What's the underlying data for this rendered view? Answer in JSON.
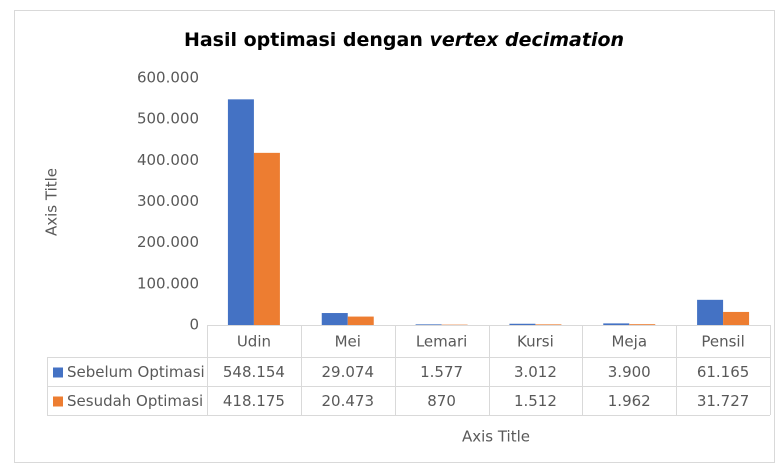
{
  "chart_data": {
    "type": "bar",
    "title": [
      "Hasil optimasi dengan ",
      "vertex decimation"
    ],
    "x_label": "Axis Title",
    "y_label": "Axis Title",
    "categories": [
      "Udin",
      "Mei",
      "Lemari",
      "Kursi",
      "Meja",
      "Pensil"
    ],
    "series": [
      {
        "name": "Sebelum Optimasi",
        "color": "#4472c4",
        "values": [
          548154,
          29074,
          1577,
          3012,
          3900,
          61165
        ],
        "value_labels": [
          "548.154",
          "29.074",
          "1.577",
          "3.012",
          "3.900",
          "61.165"
        ]
      },
      {
        "name": "Sesudah Optimasi",
        "color": "#ed7d31",
        "values": [
          418175,
          20473,
          870,
          1512,
          1962,
          31727
        ],
        "value_labels": [
          "418.175",
          "20.473",
          "870",
          "1.512",
          "1.962",
          "31.727"
        ]
      }
    ],
    "ylim": [
      0,
      600000
    ],
    "yticks": [
      0,
      {
        "value": 100000,
        "label": "100.000"
      },
      {
        "value": 200000,
        "label": "200.000"
      },
      {
        "value": 300000,
        "label": "300.000"
      },
      {
        "value": 400000,
        "label": "400.000"
      },
      {
        "value": 500000,
        "label": "500.000"
      },
      {
        "value": 600000,
        "label": "600.000"
      }
    ],
    "grid": false,
    "data_table": true
  }
}
